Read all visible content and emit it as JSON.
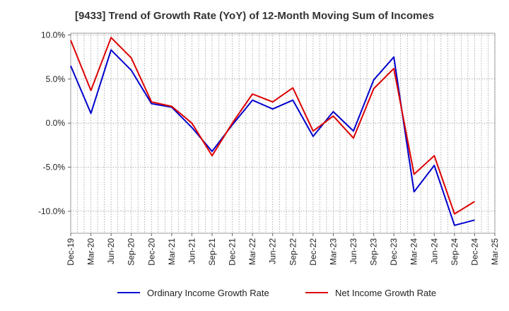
{
  "chart_data": {
    "type": "line",
    "title": "[9433]  Trend of Growth Rate (YoY) of 12-Month Moving Sum of Incomes",
    "xlabel": "",
    "ylabel": "",
    "ylim": [
      -12.5,
      10.2
    ],
    "yticks": [
      "10.0%",
      "5.0%",
      "0.0%",
      "-5.0%",
      "-10.0%"
    ],
    "ytick_values": [
      10,
      5,
      0,
      -5,
      -10
    ],
    "x_tick_labels": [
      "Dec-19",
      "Mar-20",
      "Jun-20",
      "Sep-20",
      "Dec-20",
      "Mar-21",
      "Jun-21",
      "Sep-21",
      "Dec-21",
      "Mar-22",
      "Jun-22",
      "Sep-22",
      "Dec-22",
      "Mar-23",
      "Jun-23",
      "Sep-23",
      "Dec-23",
      "Mar-24",
      "Jun-24",
      "Sep-24",
      "Dec-24",
      "Mar-25"
    ],
    "grid": true,
    "legend_position": "bottom",
    "series": [
      {
        "name": "Ordinary Income Growth Rate",
        "color": "#0000cc",
        "values": [
          6.5,
          1.1,
          8.3,
          6.0,
          2.2,
          1.8,
          -0.5,
          -3.2,
          -0.2,
          2.6,
          1.6,
          2.6,
          -1.5,
          1.3,
          -0.9,
          4.9,
          7.5,
          -7.8,
          -4.8,
          -11.6,
          -11.0
        ]
      },
      {
        "name": "Net Income Growth Rate",
        "color": "#dd0000",
        "values": [
          9.4,
          3.7,
          9.7,
          7.4,
          2.4,
          1.9,
          0.0,
          -3.7,
          0.0,
          3.3,
          2.4,
          4.0,
          -0.9,
          0.8,
          -1.7,
          3.9,
          6.2,
          -5.8,
          -3.7,
          -10.3,
          -8.9
        ]
      }
    ]
  }
}
